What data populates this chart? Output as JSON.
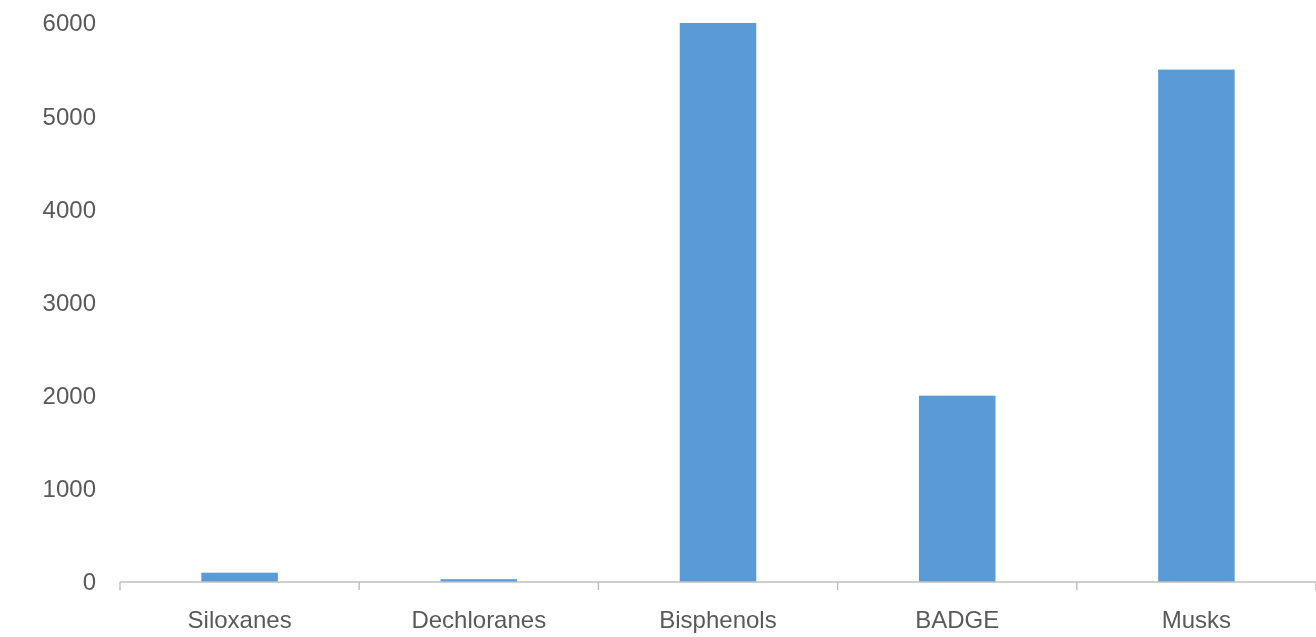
{
  "chart_data": {
    "type": "bar",
    "categories": [
      "Siloxanes",
      "Dechloranes",
      "Bisphenols",
      "BADGE",
      "Musks"
    ],
    "values": [
      100,
      30,
      6000,
      2000,
      5500
    ],
    "color": "#5b9bd5",
    "ylim": [
      0,
      6000
    ],
    "yticks": [
      0,
      1000,
      2000,
      3000,
      4000,
      5000,
      6000
    ],
    "grid": false
  }
}
